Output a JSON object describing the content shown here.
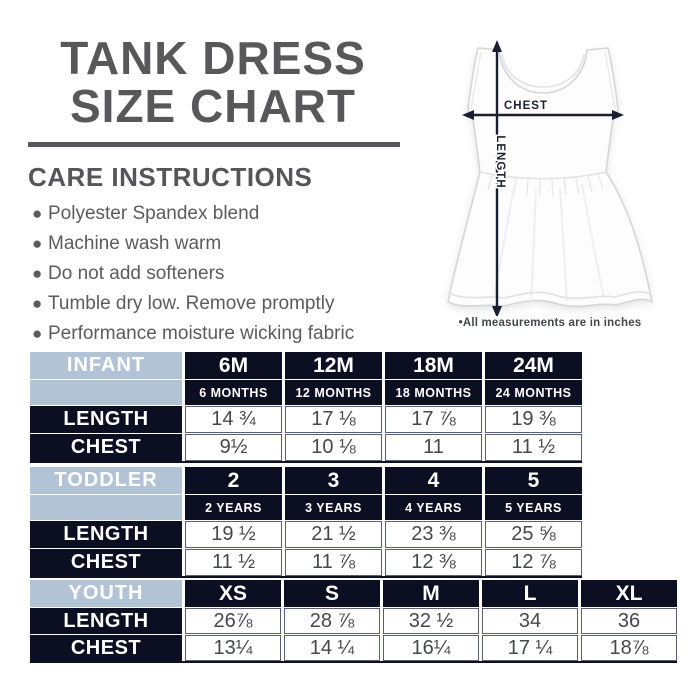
{
  "header": {
    "title_line1": "TANK DRESS",
    "title_line2": "SIZE CHART"
  },
  "care": {
    "heading": "CARE INSTRUCTIONS",
    "items": [
      "Polyester Spandex blend",
      "Machine wash warm",
      "Do not add softeners",
      "Tumble dry low. Remove promptly",
      "Performance moisture wicking fabric"
    ]
  },
  "diagram": {
    "chest_label": "CHEST",
    "length_label": "LENGTH",
    "caption": "•All measurements are in inches"
  },
  "tables": [
    {
      "group": "INFANT",
      "columns": [
        {
          "size": "6M",
          "sub": "6 MONTHS"
        },
        {
          "size": "12M",
          "sub": "12 MONTHS"
        },
        {
          "size": "18M",
          "sub": "18 MONTHS"
        },
        {
          "size": "24M",
          "sub": "24 MONTHS"
        }
      ],
      "rows": [
        {
          "label": "LENGTH",
          "values": [
            "14 ¾",
            "17 ⅛",
            "17 ⅞",
            "19 ⅜"
          ]
        },
        {
          "label": "CHEST",
          "values": [
            "9½",
            "10 ⅛",
            "11",
            "11 ½"
          ]
        }
      ]
    },
    {
      "group": "TODDLER",
      "columns": [
        {
          "size": "2",
          "sub": "2 YEARS"
        },
        {
          "size": "3",
          "sub": "3 YEARS"
        },
        {
          "size": "4",
          "sub": "4 YEARS"
        },
        {
          "size": "5",
          "sub": "5 YEARS"
        }
      ],
      "rows": [
        {
          "label": "LENGTH",
          "values": [
            "19 ½",
            "21 ½",
            "23 ⅜",
            "25 ⅝"
          ]
        },
        {
          "label": "CHEST",
          "values": [
            "11 ½",
            "11 ⅞",
            "12 ⅜",
            "12 ⅞"
          ]
        }
      ]
    },
    {
      "group": "YOUTH",
      "columns": [
        {
          "size": "XS"
        },
        {
          "size": "S"
        },
        {
          "size": "M"
        },
        {
          "size": "L"
        },
        {
          "size": "XL"
        }
      ],
      "rows": [
        {
          "label": "LENGTH",
          "values": [
            "26⅞",
            "28 ⅞",
            "32 ½",
            "34",
            "36"
          ]
        },
        {
          "label": "CHEST",
          "values": [
            "13¼",
            "14 ¼",
            "16¼",
            "17 ¼",
            "18⅞"
          ]
        }
      ]
    }
  ],
  "colors": {
    "navy": "#0b0f21",
    "light_blue": "#b3c3d6",
    "title_gray": "#58585a",
    "data_text": "#46474b"
  }
}
